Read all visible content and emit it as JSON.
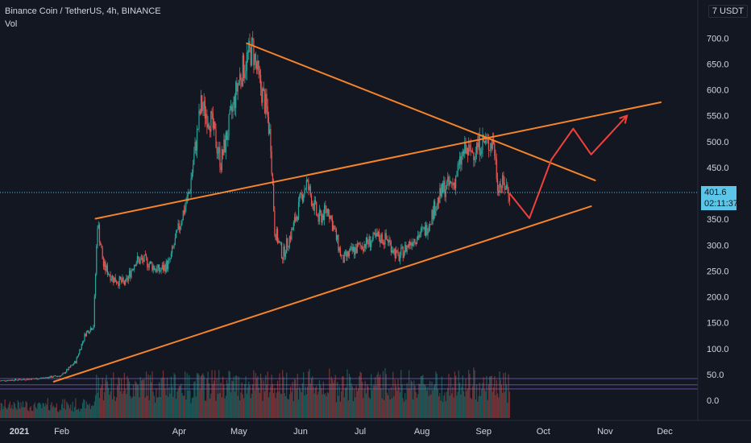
{
  "header": {
    "symbol": "Binance Coin / TetherUS, 4h, BINANCE",
    "indicator": "Vol"
  },
  "currency_button": "USDT",
  "current_price": {
    "value": "401.6",
    "countdown": "02:11:37"
  },
  "colors": {
    "background": "#131722",
    "up": "#26a69a",
    "down": "#ef5350",
    "trendline": "#f5842b",
    "projection": "#f0413b",
    "price_tag": "#5bc6e8"
  },
  "chart_data": {
    "type": "candlestick",
    "title": "Binance Coin / TetherUS, 4h, BINANCE",
    "y_axis": {
      "ticks": [
        "700.0",
        "650.0",
        "600.0",
        "550.0",
        "500.0",
        "450.0",
        "400.0",
        "350.0",
        "300.0",
        "250.0",
        "200.0",
        "150.0",
        "100.0",
        "50.0",
        "0.0"
      ],
      "range": [
        -20,
        720
      ]
    },
    "x_axis": {
      "ticks": [
        "2021",
        "Feb",
        "Apr",
        "May",
        "Jun",
        "Jul",
        "Aug",
        "Sep",
        "Oct",
        "Nov",
        "Dec"
      ]
    },
    "price_path": [
      [
        "2021-01-01",
        38
      ],
      [
        "2021-01-20",
        42
      ],
      [
        "2021-02-01",
        48
      ],
      [
        "2021-02-08",
        75
      ],
      [
        "2021-02-13",
        130
      ],
      [
        "2021-02-17",
        145
      ],
      [
        "2021-02-19",
        345
      ],
      [
        "2021-02-22",
        260
      ],
      [
        "2021-02-27",
        235
      ],
      [
        "2021-03-05",
        225
      ],
      [
        "2021-03-10",
        270
      ],
      [
        "2021-03-15",
        270
      ],
      [
        "2021-03-22",
        250
      ],
      [
        "2021-03-27",
        265
      ],
      [
        "2021-04-02",
        350
      ],
      [
        "2021-04-06",
        400
      ],
      [
        "2021-04-12",
        570
      ],
      [
        "2021-04-17",
        540
      ],
      [
        "2021-04-22",
        460
      ],
      [
        "2021-04-26",
        530
      ],
      [
        "2021-05-01",
        620
      ],
      [
        "2021-05-05",
        660
      ],
      [
        "2021-05-08",
        680
      ],
      [
        "2021-05-11",
        620
      ],
      [
        "2021-05-15",
        560
      ],
      [
        "2021-05-17",
        500
      ],
      [
        "2021-05-19",
        330
      ],
      [
        "2021-05-23",
        280
      ],
      [
        "2021-05-28",
        330
      ],
      [
        "2021-06-02",
        400
      ],
      [
        "2021-06-04",
        420
      ],
      [
        "2021-06-10",
        350
      ],
      [
        "2021-06-15",
        370
      ],
      [
        "2021-06-22",
        270
      ],
      [
        "2021-06-26",
        285
      ],
      [
        "2021-07-02",
        300
      ],
      [
        "2021-07-10",
        315
      ],
      [
        "2021-07-15",
        310
      ],
      [
        "2021-07-20",
        275
      ],
      [
        "2021-07-27",
        310
      ],
      [
        "2021-08-03",
        330
      ],
      [
        "2021-08-07",
        370
      ],
      [
        "2021-08-12",
        410
      ],
      [
        "2021-08-17",
        420
      ],
      [
        "2021-08-22",
        480
      ],
      [
        "2021-08-26",
        480
      ],
      [
        "2021-08-31",
        500
      ],
      [
        "2021-09-03",
        495
      ],
      [
        "2021-09-06",
        500
      ],
      [
        "2021-09-08",
        420
      ],
      [
        "2021-09-12",
        415
      ],
      [
        "2021-09-14",
        400
      ]
    ],
    "trendlines": [
      {
        "name": "upper-resistance",
        "from": [
          "2021-05-05",
          690
        ],
        "to": [
          "2021-10-27",
          425
        ]
      },
      {
        "name": "mid-rising",
        "from": [
          "2021-02-18",
          351
        ],
        "to": [
          "2021-11-29",
          576
        ]
      },
      {
        "name": "lower-support",
        "from": [
          "2021-01-28",
          36
        ],
        "to": [
          "2021-10-25",
          375
        ]
      }
    ],
    "projection": [
      [
        "2021-09-14",
        400
      ],
      [
        "2021-09-24",
        352
      ],
      [
        "2021-10-05",
        465
      ],
      [
        "2021-10-16",
        525
      ],
      [
        "2021-10-25",
        475
      ],
      [
        "2021-11-12",
        550
      ]
    ],
    "volume_hlines": [
      42,
      30,
      22
    ]
  }
}
